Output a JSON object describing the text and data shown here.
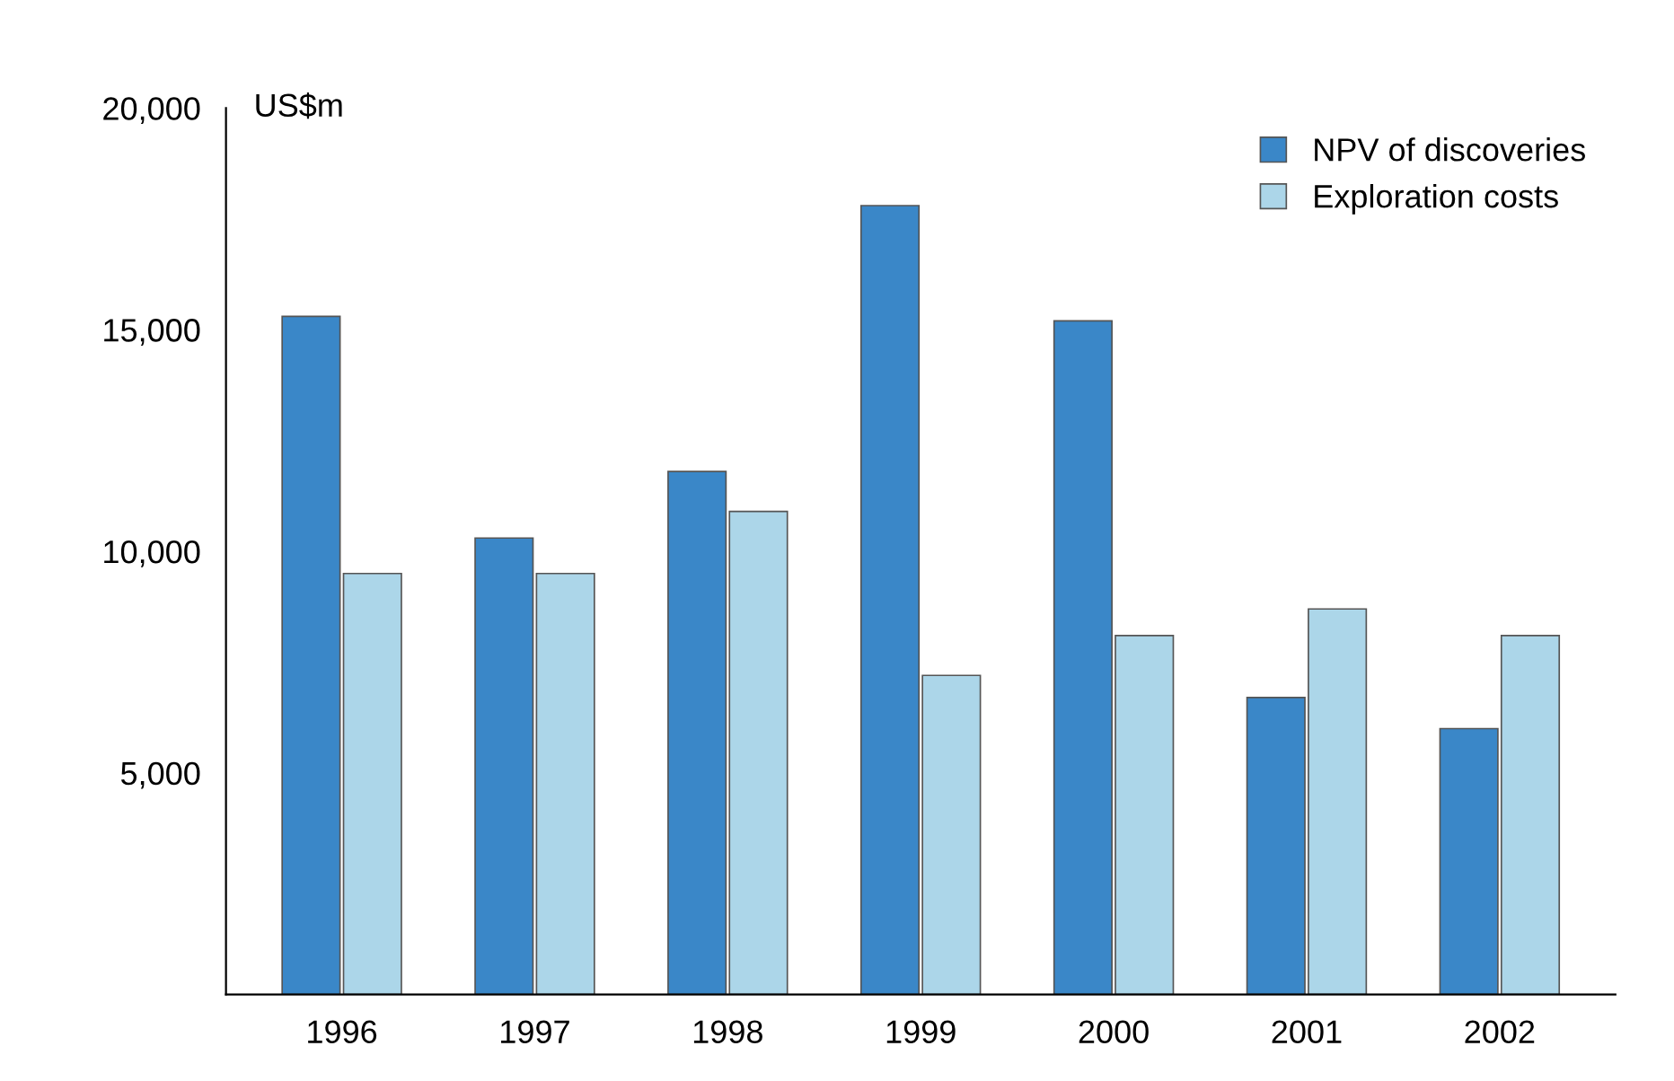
{
  "chart_data": {
    "type": "bar",
    "ylabel": "US$m",
    "categories": [
      "1996",
      "1997",
      "1998",
      "1999",
      "2000",
      "2001",
      "2002"
    ],
    "series": [
      {
        "name": "NPV of discoveries",
        "color": "#3a87c8",
        "values": [
          15300,
          10300,
          11800,
          17800,
          15200,
          6700,
          6000
        ]
      },
      {
        "name": "Exploration costs",
        "color": "#acd6e9",
        "values": [
          9500,
          9500,
          10900,
          7200,
          8100,
          8700,
          8100
        ]
      }
    ],
    "ylim": [
      0,
      20000
    ],
    "yticks": [
      {
        "value": 5000,
        "label": "5,000"
      },
      {
        "value": 10000,
        "label": "10,000"
      },
      {
        "value": 15000,
        "label": "15,000"
      },
      {
        "value": 20000,
        "label": "20,000"
      }
    ],
    "grid": false,
    "legend": "top right"
  }
}
